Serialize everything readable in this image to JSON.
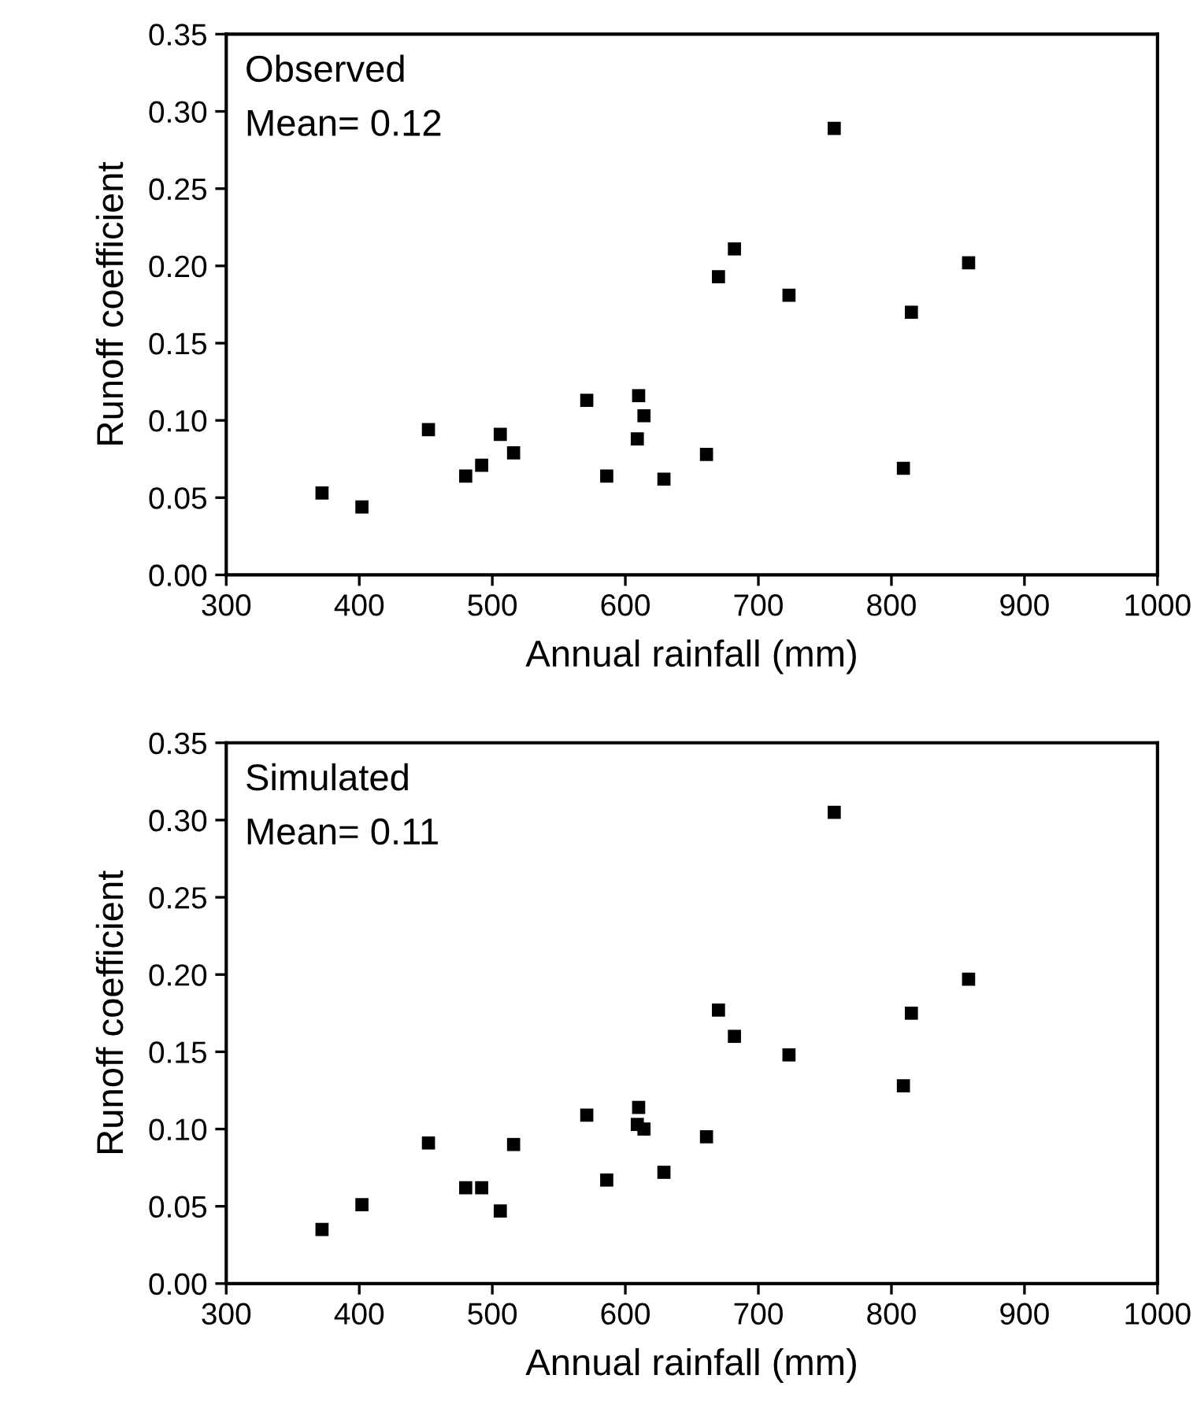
{
  "chart_data": [
    {
      "type": "scatter",
      "xlabel": "Annual rainfall (mm)",
      "ylabel": "Runoff coefficient",
      "annotations": [
        "Observed",
        "Mean= 0.12"
      ],
      "marker": "square",
      "grid": false,
      "legend": false,
      "series": [
        {
          "color": "#000000",
          "x": [
            372,
            402,
            452,
            480,
            492,
            506,
            516,
            571,
            586,
            610,
            614,
            609,
            629,
            661,
            670,
            682,
            723,
            757,
            809,
            815,
            858
          ],
          "values": [
            0.053,
            0.044,
            0.094,
            0.064,
            0.071,
            0.091,
            0.079,
            0.113,
            0.064,
            0.116,
            0.103,
            0.088,
            0.062,
            0.078,
            0.193,
            0.211,
            0.181,
            0.289,
            0.069,
            0.17,
            0.202
          ]
        }
      ],
      "xlim": [
        300,
        1000
      ],
      "xticks": [
        300,
        400,
        500,
        600,
        700,
        800,
        900,
        1000
      ],
      "ylim": [
        0,
        0.35
      ],
      "yticks": [
        {
          "value": 0,
          "label": "0.00"
        },
        {
          "value": 0.05,
          "label": "0.05"
        },
        {
          "value": 0.1,
          "label": "0.10"
        },
        {
          "value": 0.15,
          "label": "0.15"
        },
        {
          "value": 0.2,
          "label": "0.20"
        },
        {
          "value": 0.25,
          "label": "0.25"
        },
        {
          "value": 0.3,
          "label": "0.30"
        },
        {
          "value": 0.35,
          "label": "0.35"
        }
      ]
    },
    {
      "type": "scatter",
      "xlabel": "Annual rainfall (mm)",
      "ylabel": "Runoff coefficient",
      "annotations": [
        "Simulated",
        "Mean= 0.11"
      ],
      "marker": "square",
      "grid": false,
      "legend": false,
      "series": [
        {
          "color": "#000000",
          "x": [
            372,
            402,
            452,
            480,
            492,
            506,
            516,
            571,
            586,
            610,
            614,
            609,
            629,
            661,
            670,
            682,
            723,
            757,
            809,
            815,
            858
          ],
          "values": [
            0.035,
            0.051,
            0.091,
            0.062,
            0.062,
            0.047,
            0.09,
            0.109,
            0.067,
            0.114,
            0.1,
            0.103,
            0.072,
            0.095,
            0.177,
            0.16,
            0.148,
            0.305,
            0.128,
            0.175,
            0.197
          ]
        }
      ],
      "xlim": [
        300,
        1000
      ],
      "xticks": [
        300,
        400,
        500,
        600,
        700,
        800,
        900,
        1000
      ],
      "ylim": [
        0,
        0.35
      ],
      "yticks": [
        {
          "value": 0,
          "label": "0.00"
        },
        {
          "value": 0.05,
          "label": "0.05"
        },
        {
          "value": 0.1,
          "label": "0.10"
        },
        {
          "value": 0.15,
          "label": "0.15"
        },
        {
          "value": 0.2,
          "label": "0.20"
        },
        {
          "value": 0.25,
          "label": "0.25"
        },
        {
          "value": 0.3,
          "label": "0.30"
        },
        {
          "value": 0.35,
          "label": "0.35"
        }
      ]
    }
  ]
}
